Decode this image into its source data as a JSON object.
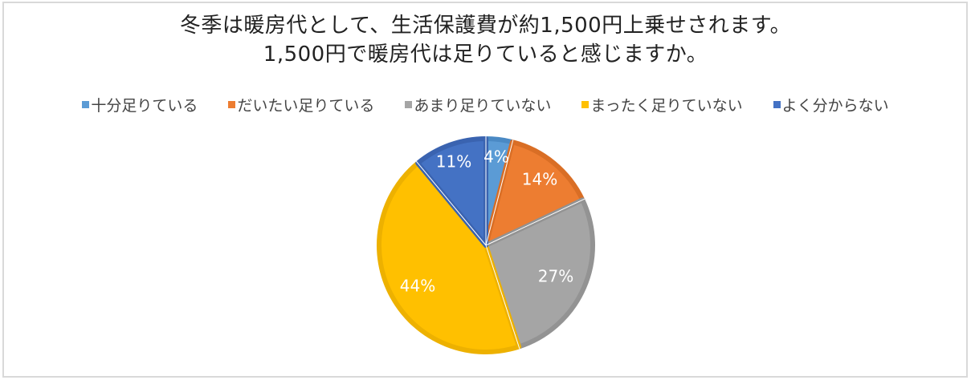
{
  "title": {
    "line1": "冬季は暖房代として、生活保護費が約1,500円上乗せされます。",
    "line2": "1,500円で暖房代は足りていると感じますか。"
  },
  "legend": [
    {
      "label": "十分足りている",
      "color": "#5B9BD5"
    },
    {
      "label": "だいたい足りている",
      "color": "#ED7D31"
    },
    {
      "label": "あまり足りていない",
      "color": "#A5A5A5"
    },
    {
      "label": "まったく足りていない",
      "color": "#FFC000"
    },
    {
      "label": "よく分からない",
      "color": "#4472C4"
    }
  ],
  "chart_data": {
    "type": "pie",
    "title": "冬季は暖房代として、生活保護費が約1,500円上乗せされます。1,500円で暖房代は足りていると感じますか。",
    "categories": [
      "十分足りている",
      "だいたい足りている",
      "あまり足りていない",
      "まったく足りていない",
      "よく分からない"
    ],
    "values": [
      4,
      14,
      27,
      44,
      11
    ],
    "labels": [
      "4%",
      "14%",
      "27%",
      "44%",
      "11%"
    ],
    "colors": [
      "#5B9BD5",
      "#ED7D31",
      "#A5A5A5",
      "#FFC000",
      "#4472C4"
    ],
    "border_colors": [
      "#4A89C4",
      "#D96E25",
      "#939393",
      "#EDB100",
      "#3A63B0"
    ],
    "start_angle_deg": 0,
    "direction": "clockwise",
    "legend_position": "top",
    "center": [
      605,
      306
    ],
    "radius": 136
  }
}
